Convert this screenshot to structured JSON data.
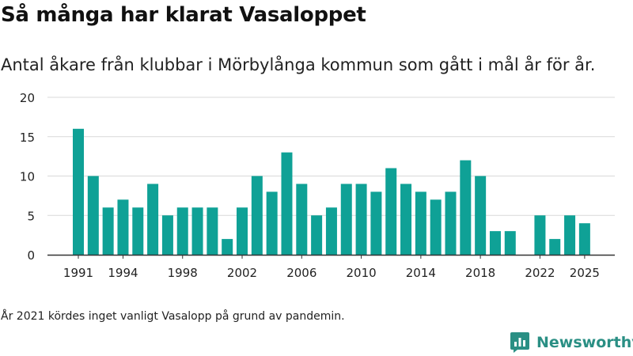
{
  "title": "Så många har klarat Vasaloppet",
  "subtitle": "Antal åkare från klubbar i Mörbylånga kommun som gått i mål år för år.",
  "footnote": "År 2021 kördes inget vanligt Vasalopp på grund av pandemin.",
  "brand": {
    "name": "Newsworthy"
  },
  "colors": {
    "bar": "#0fa196",
    "grid": "#d9d9d9",
    "axis": "#333333",
    "brand": "#2a8f84"
  },
  "chart_data": {
    "type": "bar",
    "title": "Så många har klarat Vasaloppet",
    "xlabel": "",
    "ylabel": "",
    "ylim": [
      0,
      20
    ],
    "yticks": [
      0,
      5,
      10,
      15,
      20
    ],
    "xtick_labels": [
      "1991",
      "1994",
      "1998",
      "2002",
      "2006",
      "2010",
      "2014",
      "2018",
      "2022",
      "2025"
    ],
    "categories": [
      "1991",
      "1992",
      "1993",
      "1994",
      "1995",
      "1996",
      "1997",
      "1998",
      "1999",
      "2000",
      "2001",
      "2002",
      "2003",
      "2004",
      "2005",
      "2006",
      "2007",
      "2008",
      "2009",
      "2010",
      "2011",
      "2012",
      "2013",
      "2014",
      "2015",
      "2016",
      "2017",
      "2018",
      "2019",
      "2020",
      "2021",
      "2022",
      "2023",
      "2024",
      "2025"
    ],
    "values": [
      16,
      10,
      6,
      7,
      6,
      9,
      5,
      6,
      6,
      6,
      2,
      6,
      10,
      8,
      13,
      9,
      5,
      6,
      9,
      9,
      8,
      11,
      9,
      8,
      7,
      8,
      12,
      10,
      3,
      3,
      null,
      5,
      2,
      5,
      4
    ]
  }
}
